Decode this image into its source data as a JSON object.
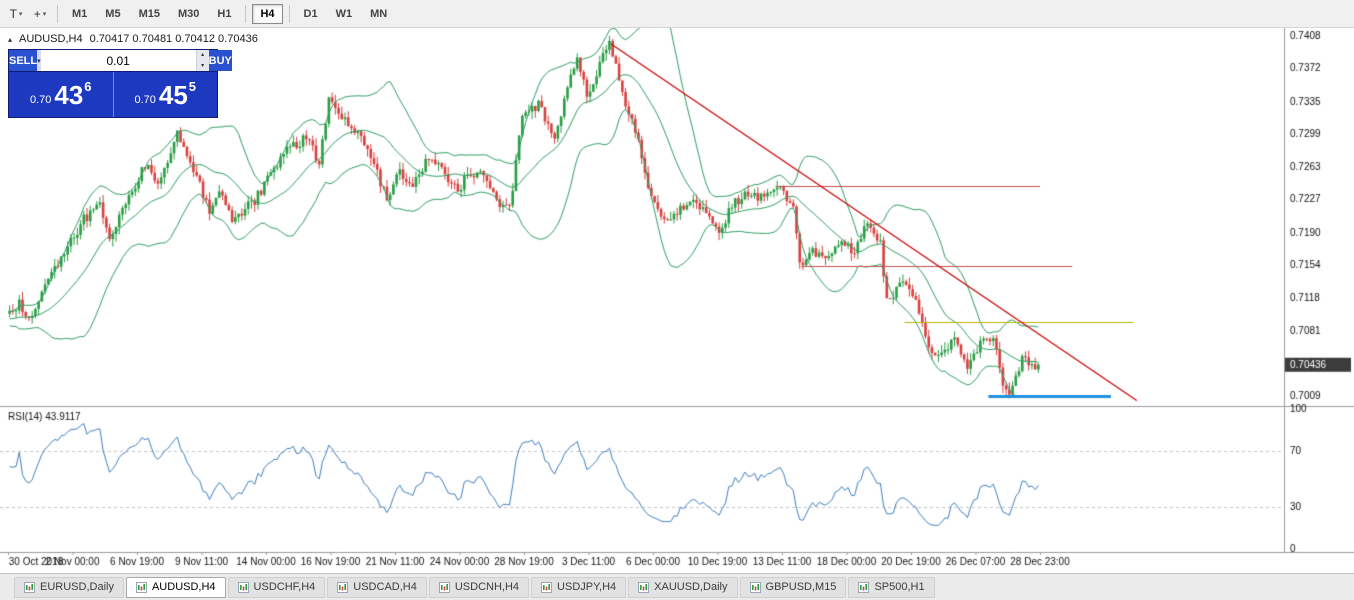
{
  "toolbar": {
    "left_icons": [
      {
        "name": "text-tool-icon",
        "glyph": "T"
      },
      {
        "name": "crosshair-tool-icon",
        "glyph": "+"
      }
    ],
    "dropdown_glyph": "▾",
    "timeframe_groups": [
      [
        "M1",
        "M5",
        "M15",
        "M30",
        "H1"
      ],
      [
        "H4"
      ],
      [
        "D1",
        "W1",
        "MN"
      ]
    ],
    "active_timeframe": "H4"
  },
  "chart_header": {
    "collapse_glyph": "▴",
    "symbol": "AUDUSD,H4",
    "ohlc": "0.70417 0.70481 0.70412 0.70436"
  },
  "trade_panel": {
    "sell_label": "SELL",
    "buy_label": "BUY",
    "volume": "0.01",
    "dropdown_glyph": "▾",
    "spin_up": "▴",
    "spin_down": "▾",
    "sell_price_prefix": "0.70",
    "sell_price_big": "43",
    "sell_price_sup": "6",
    "buy_price_prefix": "0.70",
    "buy_price_big": "45",
    "buy_price_sup": "5"
  },
  "chart_data": {
    "type": "candlestick",
    "title": "AUDUSD,H4",
    "num_candles": 320,
    "price_top": 0.74135,
    "price_bottom": 0.6999,
    "y_ticks": [
      "0.7408",
      "0.7372",
      "0.7335",
      "0.7299",
      "0.7263",
      "0.7227",
      "0.7190",
      "0.7154",
      "0.7118",
      "0.7081",
      "0.7045",
      "0.7009"
    ],
    "x_labels": [
      "30 Oct 2018",
      "2 Nov 00:00",
      "6 Nov 19:00",
      "9 Nov 11:00",
      "14 Nov 00:00",
      "16 Nov 19:00",
      "21 Nov 11:00",
      "24 Nov 00:00",
      "28 Nov 19:00",
      "3 Dec 11:00",
      "6 Dec 00:00",
      "10 Dec 19:00",
      "13 Dec 11:00",
      "18 Dec 00:00",
      "20 Dec 19:00",
      "26 Dec 07:00",
      "28 Dec 23:00"
    ],
    "candles_per_label": 20,
    "waypoints": [
      [
        0,
        0.7095
      ],
      [
        4,
        0.7112
      ],
      [
        7,
        0.7095
      ],
      [
        15,
        0.715
      ],
      [
        24,
        0.7205
      ],
      [
        29,
        0.722
      ],
      [
        32,
        0.7185
      ],
      [
        38,
        0.723
      ],
      [
        43,
        0.7265
      ],
      [
        47,
        0.7245
      ],
      [
        53,
        0.73
      ],
      [
        57,
        0.7268
      ],
      [
        63,
        0.7215
      ],
      [
        66,
        0.724
      ],
      [
        70,
        0.7205
      ],
      [
        77,
        0.7225
      ],
      [
        81,
        0.725
      ],
      [
        87,
        0.728
      ],
      [
        93,
        0.7295
      ],
      [
        97,
        0.7268
      ],
      [
        100,
        0.7338
      ],
      [
        104,
        0.732
      ],
      [
        109,
        0.73
      ],
      [
        114,
        0.7268
      ],
      [
        118,
        0.7225
      ],
      [
        122,
        0.7258
      ],
      [
        126,
        0.7245
      ],
      [
        131,
        0.7275
      ],
      [
        135,
        0.726
      ],
      [
        140,
        0.7235
      ],
      [
        143,
        0.7258
      ],
      [
        148,
        0.7255
      ],
      [
        152,
        0.7222
      ],
      [
        156,
        0.7215
      ],
      [
        160,
        0.7318
      ],
      [
        165,
        0.7332
      ],
      [
        170,
        0.7295
      ],
      [
        174,
        0.735
      ],
      [
        177,
        0.7385
      ],
      [
        180,
        0.734
      ],
      [
        184,
        0.7378
      ],
      [
        187,
        0.74
      ],
      [
        191,
        0.7345
      ],
      [
        196,
        0.729
      ],
      [
        200,
        0.723
      ],
      [
        204,
        0.72
      ],
      [
        208,
        0.7215
      ],
      [
        213,
        0.7225
      ],
      [
        217,
        0.721
      ],
      [
        221,
        0.719
      ],
      [
        225,
        0.722
      ],
      [
        230,
        0.7235
      ],
      [
        234,
        0.7228
      ],
      [
        239,
        0.724
      ],
      [
        244,
        0.7222
      ],
      [
        246,
        0.7155
      ],
      [
        250,
        0.717
      ],
      [
        254,
        0.716
      ],
      [
        259,
        0.718
      ],
      [
        263,
        0.717
      ],
      [
        267,
        0.72
      ],
      [
        271,
        0.718
      ],
      [
        273,
        0.7112
      ],
      [
        278,
        0.7135
      ],
      [
        282,
        0.712
      ],
      [
        286,
        0.706
      ],
      [
        290,
        0.7055
      ],
      [
        294,
        0.7075
      ],
      [
        298,
        0.704
      ],
      [
        302,
        0.7065
      ],
      [
        306,
        0.7075
      ],
      [
        309,
        0.702
      ],
      [
        311,
        0.7008
      ],
      [
        313,
        0.7035
      ],
      [
        316,
        0.7055
      ],
      [
        318,
        0.704
      ],
      [
        320,
        0.70436
      ]
    ],
    "bollinger": {
      "period": 20,
      "deviation": 2,
      "color": "#2f9e63"
    },
    "rsi": {
      "period": 14,
      "label": "RSI(14) 43.9117",
      "value": 43.9117,
      "levels": [
        100,
        70,
        30,
        0
      ],
      "dashed": [
        70,
        30
      ],
      "color": "#4080c0"
    },
    "trendline": {
      "from": [
        187,
        0.7399
      ],
      "to": [
        350,
        0.7004
      ],
      "color": "#cc0000"
    },
    "hlines": [
      {
        "price": 0.7242,
        "from": 238,
        "to": 320,
        "color": "#c05050",
        "width": 1
      },
      {
        "price": 0.7153,
        "from": 246,
        "to": 330,
        "color": "#c05050",
        "width": 1
      },
      {
        "price": 0.7091,
        "from": 278,
        "to": 349,
        "color": "#b8b400",
        "width": 1
      },
      {
        "price": 0.7009,
        "from": 304,
        "to": 342,
        "color": "#2090e0",
        "width": 3
      }
    ],
    "price_badge": {
      "text": "0.70436",
      "value": 0.70436,
      "bg": "#3c3c3c",
      "fg": "#ffffff"
    },
    "colors": {
      "up": "#2a9d45",
      "down": "#d94040",
      "bg": "#ffffff",
      "axis_text": "#111111",
      "grid": "#c4c4c4",
      "divider": "#9c9c9c"
    }
  },
  "bottom_tabs": {
    "active": "AUDUSD,H4",
    "tab_icon": "mini-chart-icon",
    "items": [
      "EURUSD,Daily",
      "AUDUSD,H4",
      "USDCHF,H4",
      "USDCAD,H4",
      "USDCNH,H4",
      "USDJPY,H4",
      "XAUUSD,Daily",
      "GBPUSD,M15",
      "SP500,H1"
    ]
  }
}
